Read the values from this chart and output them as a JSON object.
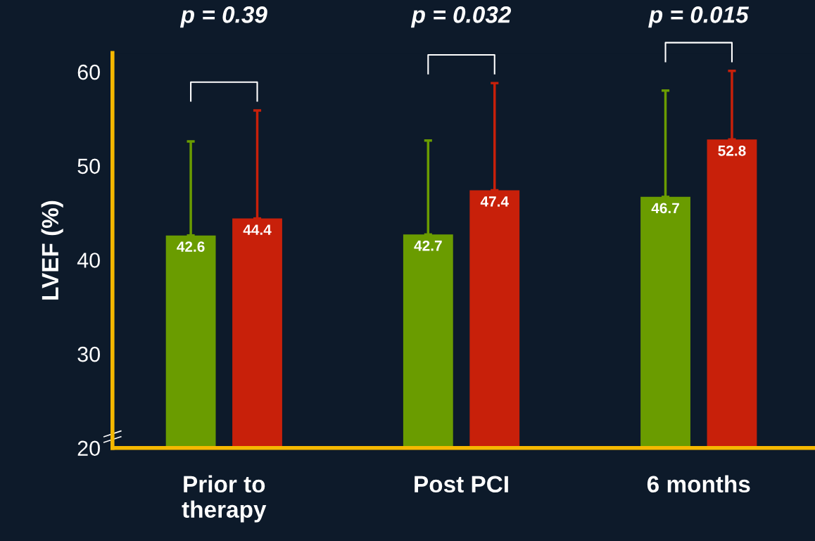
{
  "chart_data": {
    "type": "bar",
    "ylabel": "LVEF (%)",
    "categories": [
      "Prior to\ntherapy",
      "Post PCI",
      "6 months"
    ],
    "series": [
      {
        "color": "#6a9c00",
        "values": [
          42.6,
          42.7,
          46.7
        ],
        "errors": [
          [
            42.6,
            52.6
          ],
          [
            42.7,
            52.7
          ],
          [
            46.7,
            58.0
          ]
        ]
      },
      {
        "color": "#c8200a",
        "values": [
          44.4,
          47.4,
          52.8
        ],
        "errors": [
          [
            44.4,
            55.9
          ],
          [
            47.4,
            58.8
          ],
          [
            52.8,
            60.1
          ]
        ]
      }
    ],
    "ylim": [
      20,
      62
    ],
    "yticks": [
      20,
      30,
      40,
      50,
      60
    ],
    "grid": false,
    "legend": false,
    "data_labels": true,
    "annotations": [
      "p = 0.39",
      "p = 0.032",
      "p = 0.015"
    ]
  }
}
